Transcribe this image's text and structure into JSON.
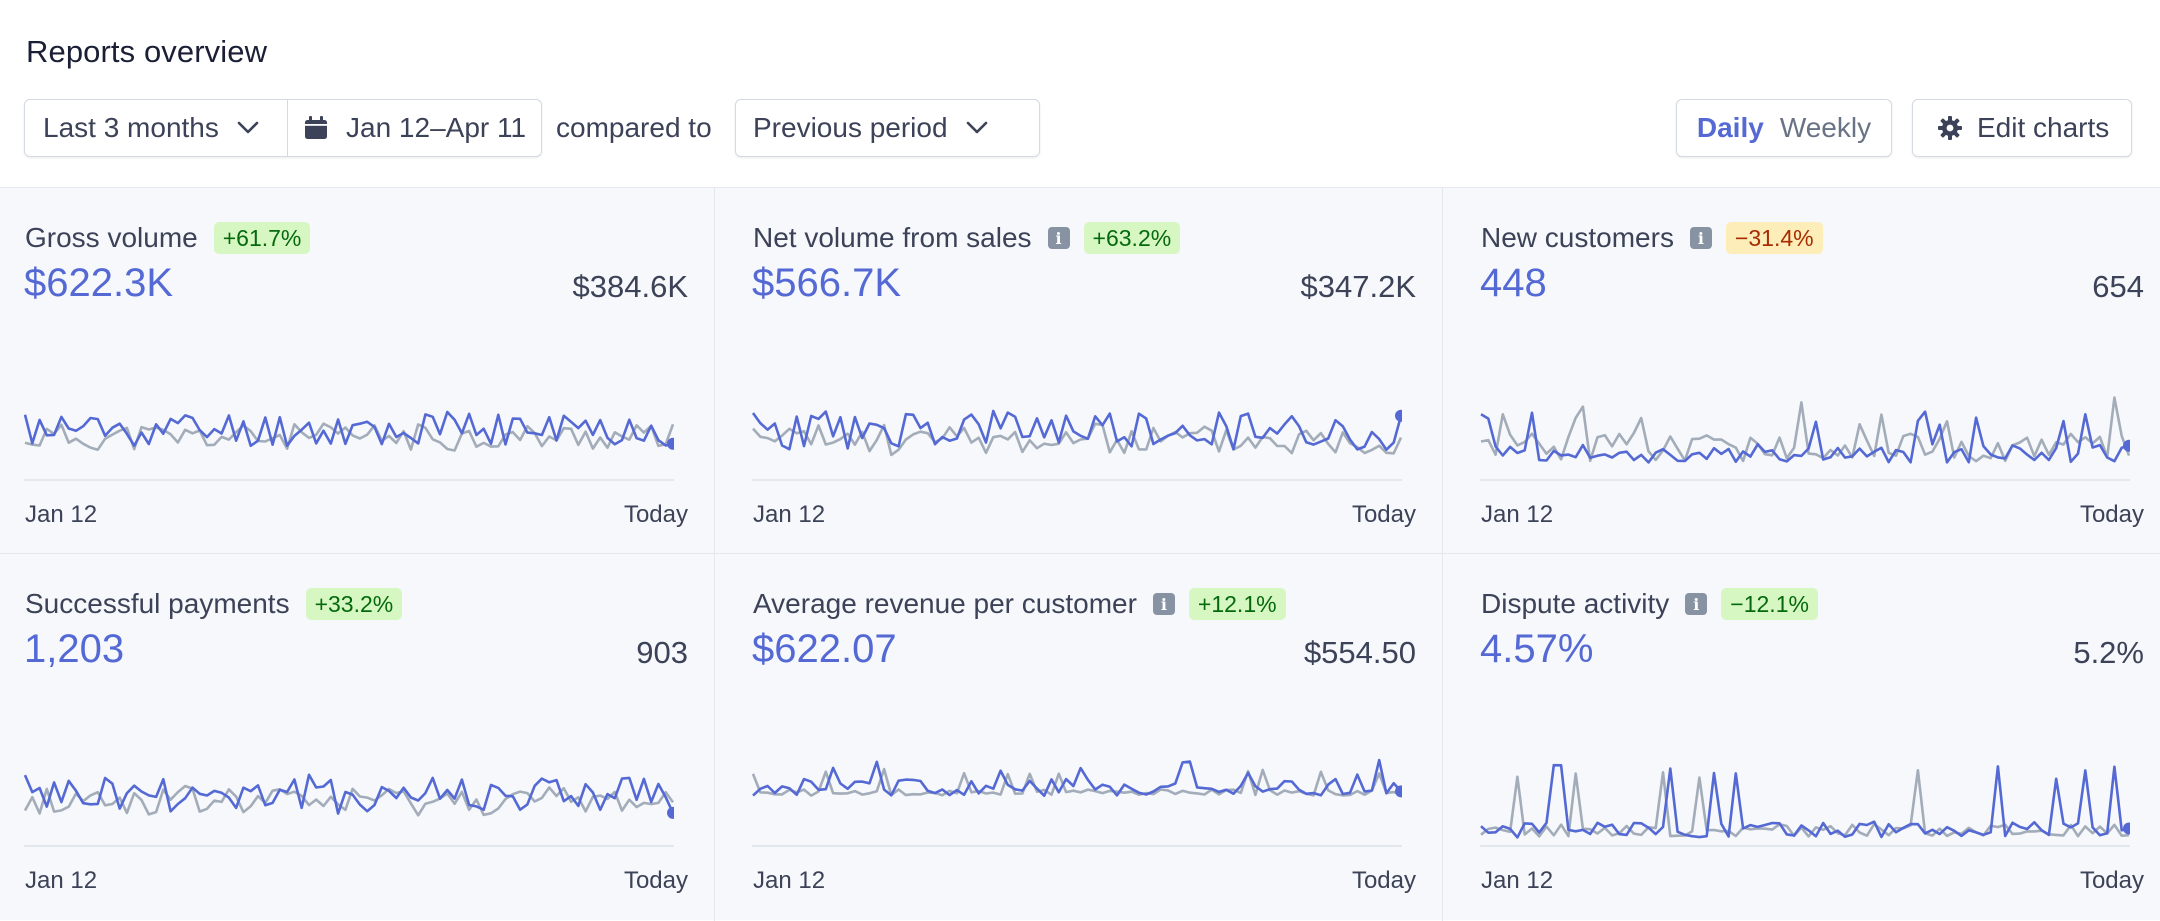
{
  "header": {
    "title": "Reports overview"
  },
  "toolbar": {
    "range_label": "Last 3 months",
    "date_label": "Jan 12–Apr 11",
    "compared_text": "compared to",
    "compare_label": "Previous period",
    "daily_label": "Daily",
    "weekly_label": "Weekly",
    "edit_label": "Edit charts"
  },
  "colors": {
    "current": "#5469d4",
    "previous": "#a3acb9"
  },
  "cards": [
    {
      "title": "Gross volume",
      "change": "+61.7%",
      "change_type": "positive",
      "info": false,
      "value": "$622.3K",
      "previous": "$384.6K",
      "x_start": "Jan 12",
      "x_end": "Today",
      "chart_data": {
        "type": "line",
        "seed": 11,
        "base": 0.34,
        "amp": 0.34,
        "prevbase": 0.28,
        "prevamp": 0.26,
        "spike": 0
      }
    },
    {
      "title": "Net volume from sales",
      "change": "+63.2%",
      "change_type": "positive",
      "info": true,
      "value": "$566.7K",
      "previous": "$347.2K",
      "x_start": "Jan 12",
      "x_end": "Today",
      "chart_data": {
        "type": "line",
        "seed": 23,
        "base": 0.32,
        "amp": 0.38,
        "prevbase": 0.25,
        "prevamp": 0.3,
        "spike": 0
      }
    },
    {
      "title": "New customers",
      "change": "−31.4%",
      "change_type": "negative",
      "info": true,
      "value": "448",
      "previous": "654",
      "x_start": "Jan 12",
      "x_end": "Today",
      "chart_data": {
        "type": "line",
        "seed": 37,
        "base": 0.14,
        "amp": 0.18,
        "prevbase": 0.18,
        "prevamp": 0.28,
        "spike": 0.35
      }
    },
    {
      "title": "Successful payments",
      "change": "+33.2%",
      "change_type": "positive",
      "info": false,
      "value": "1,203",
      "previous": "903",
      "x_start": "Jan 12",
      "x_end": "Today",
      "chart_data": {
        "type": "line",
        "seed": 41,
        "base": 0.34,
        "amp": 0.38,
        "prevbase": 0.3,
        "prevamp": 0.28,
        "spike": 0
      }
    },
    {
      "title": "Average revenue per customer",
      "change": "+12.1%",
      "change_type": "positive",
      "info": true,
      "value": "$622.07",
      "previous": "$554.50",
      "x_start": "Jan 12",
      "x_end": "Today",
      "chart_data": {
        "type": "line",
        "seed": 53,
        "base": 0.45,
        "amp": 0.16,
        "prevbase": 0.42,
        "prevamp": 0.06,
        "spike": 0.2
      }
    },
    {
      "title": "Dispute activity",
      "change": "−12.1%",
      "change_type": "positive",
      "info": true,
      "value": "4.57%",
      "previous": "5.2%",
      "x_start": "Jan 12",
      "x_end": "Today",
      "chart_data": {
        "type": "line",
        "seed": 67,
        "base": 0.05,
        "amp": 0.15,
        "prevbase": 0.05,
        "prevamp": 0.12,
        "spike": 0.55
      }
    }
  ]
}
